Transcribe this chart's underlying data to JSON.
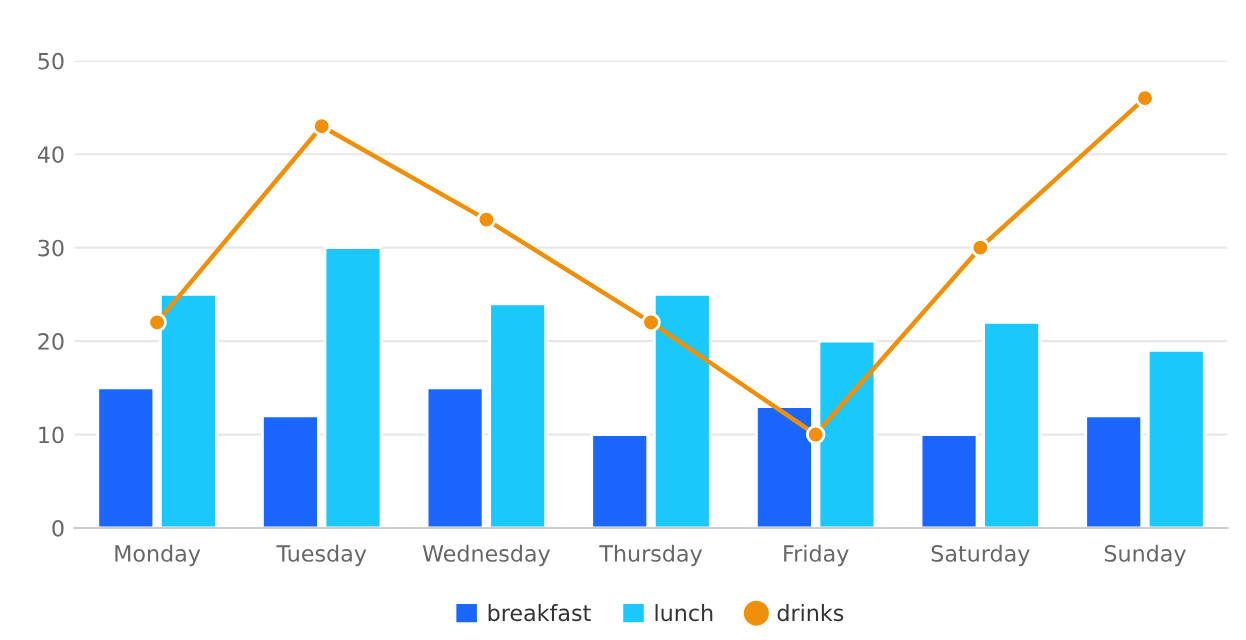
{
  "chart_data": {
    "type": "bar",
    "categories": [
      "Monday",
      "Tuesday",
      "Wednesday",
      "Thursday",
      "Friday",
      "Saturday",
      "Sunday"
    ],
    "series": [
      {
        "name": "breakfast",
        "color": "#1a66ff",
        "values": [
          15,
          12,
          15,
          10,
          13,
          10,
          12
        ]
      },
      {
        "name": "lunch",
        "color": "#1ac8fc",
        "values": [
          25,
          30,
          24,
          25,
          20,
          22,
          19
        ]
      },
      {
        "name": "drinks",
        "type": "line",
        "color": "#f0900a",
        "marker": "circle",
        "values": [
          22,
          43,
          33,
          22,
          10,
          30,
          46
        ]
      }
    ],
    "ylim": [
      0,
      50
    ],
    "yticks": [
      0,
      10,
      20,
      30,
      40,
      50
    ],
    "grid": "y",
    "legend": "bottom"
  }
}
